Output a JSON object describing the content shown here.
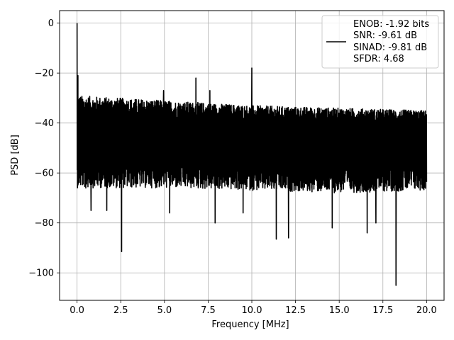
{
  "chart_data": {
    "type": "line",
    "title": "",
    "xlabel": "Frequency [MHz]",
    "ylabel": "PSD [dB]",
    "xlim": [
      -1.0,
      21.0
    ],
    "ylim": [
      -111,
      5
    ],
    "xticks": [
      0.0,
      2.5,
      5.0,
      7.5,
      10.0,
      12.5,
      15.0,
      17.5,
      20.0
    ],
    "xtick_labels": [
      "0.0",
      "2.5",
      "5.0",
      "7.5",
      "10.0",
      "12.5",
      "15.0",
      "17.5",
      "20.0"
    ],
    "yticks": [
      0,
      -20,
      -40,
      -60,
      -80,
      -100
    ],
    "ytick_labels": [
      "0",
      "−20",
      "−40",
      "−60",
      "−80",
      "−100"
    ],
    "grid": true,
    "legend": {
      "placement": "upper-right",
      "lines": [
        "ENOB: -1.92 bits",
        "SNR: -9.61 dB",
        "SINAD: -9.81 dB",
        "SFDR: 4.68"
      ]
    },
    "series": [
      {
        "color": "#000000",
        "noise_floor": {
          "x_range": [
            0.0,
            20.0
          ],
          "upper_envelope_db": [
            [
              0.0,
              -29
            ],
            [
              5.0,
              -31
            ],
            [
              10.0,
              -33
            ],
            [
              15.0,
              -34
            ],
            [
              20.0,
              -35
            ]
          ],
          "lower_envelope_db": [
            [
              0.0,
              -66
            ],
            [
              5.0,
              -66
            ],
            [
              10.0,
              -67
            ],
            [
              15.0,
              -68
            ],
            [
              20.0,
              -67
            ]
          ],
          "center_db": -47
        },
        "peaks": [
          {
            "x": 0.0,
            "y": 0
          },
          {
            "x": 0.05,
            "y": -21
          },
          {
            "x": 6.8,
            "y": -22
          },
          {
            "x": 7.6,
            "y": -27
          },
          {
            "x": 10.0,
            "y": -18
          },
          {
            "x": 4.95,
            "y": -27
          }
        ],
        "dips": [
          {
            "x": 0.15,
            "y": -62
          },
          {
            "x": 0.5,
            "y": -66
          },
          {
            "x": 0.8,
            "y": -75
          },
          {
            "x": 1.7,
            "y": -75
          },
          {
            "x": 2.55,
            "y": -91.5
          },
          {
            "x": 5.3,
            "y": -76
          },
          {
            "x": 7.9,
            "y": -80
          },
          {
            "x": 9.5,
            "y": -76
          },
          {
            "x": 11.4,
            "y": -86.5
          },
          {
            "x": 12.1,
            "y": -86
          },
          {
            "x": 14.6,
            "y": -82
          },
          {
            "x": 16.6,
            "y": -84
          },
          {
            "x": 17.1,
            "y": -80
          },
          {
            "x": 18.25,
            "y": -105
          }
        ]
      }
    ]
  }
}
